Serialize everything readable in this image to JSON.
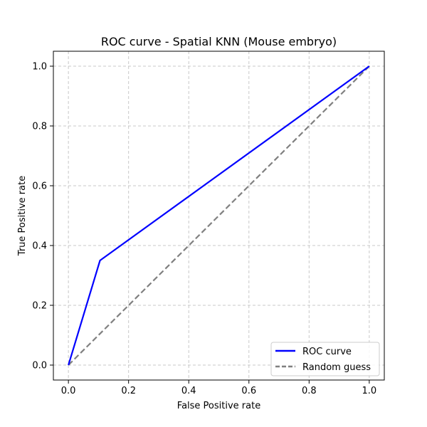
{
  "chart_data": {
    "type": "line",
    "title": "ROC curve - Spatial KNN (Mouse embryo)",
    "xlabel": "False Positive rate",
    "ylabel": "True Positive rate",
    "xlim": [
      -0.05,
      1.05
    ],
    "ylim": [
      -0.05,
      1.05
    ],
    "x_ticks": [
      "0.0",
      "0.2",
      "0.4",
      "0.6",
      "0.8",
      "1.0"
    ],
    "y_ticks": [
      "0.0",
      "0.2",
      "0.4",
      "0.6",
      "0.8",
      "1.0"
    ],
    "grid": true,
    "grid_style": "dashed",
    "legend_position": "lower-right",
    "series": [
      {
        "name": "ROC curve",
        "color": "#0000ff",
        "style": "solid",
        "x": [
          0.0,
          0.105,
          1.0
        ],
        "y": [
          0.0,
          0.35,
          1.0
        ]
      },
      {
        "name": "Random guess",
        "color": "#808080",
        "style": "dashed",
        "x": [
          0.0,
          1.0
        ],
        "y": [
          0.0,
          1.0
        ]
      }
    ]
  }
}
